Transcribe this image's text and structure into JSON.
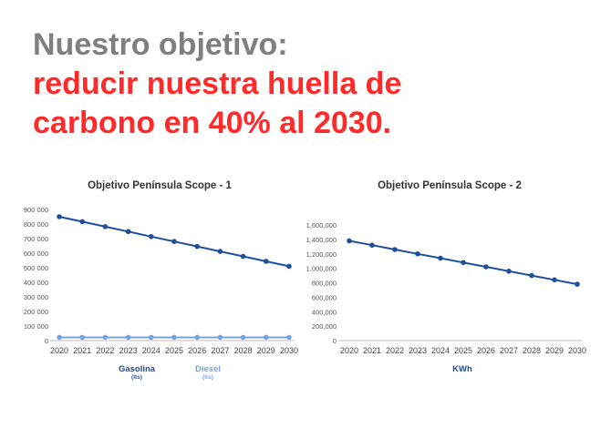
{
  "headline": {
    "line1": "Nuestro objetivo:",
    "line2": "reducir nuestra huella de",
    "line3": "carbono en 40% al 2030."
  },
  "colors": {
    "gray": "#7f7f7f",
    "red": "#ff2a2a",
    "dark_blue": "#1f4e9a",
    "light_blue": "#7aa3dc"
  },
  "chart_data": [
    {
      "type": "line",
      "title": "Objetivo Península Scope - 1",
      "x": [
        2020,
        2021,
        2022,
        2023,
        2024,
        2025,
        2026,
        2027,
        2028,
        2029,
        2030
      ],
      "ylim": [
        0,
        900000
      ],
      "yticks": [
        "0",
        "100 000",
        "200 000",
        "300 000",
        "400 000",
        "500 000",
        "600 000",
        "700 000",
        "800 000",
        "900 000"
      ],
      "grid": false,
      "legend_position": "bottom",
      "series": [
        {
          "name": "Gasolina",
          "unit": "(lts)",
          "color": "#1f4e9a",
          "values": [
            850000,
            816000,
            782000,
            748000,
            714000,
            680000,
            646000,
            612000,
            578000,
            544000,
            510000
          ]
        },
        {
          "name": "Diesel",
          "unit": "(lts)",
          "color": "#7aa3dc",
          "values": [
            22000,
            22000,
            22000,
            22000,
            22000,
            22000,
            22000,
            22000,
            22000,
            22000,
            22000
          ]
        }
      ]
    },
    {
      "type": "line",
      "title": "Objetivo Península Scope - 2",
      "x": [
        2020,
        2021,
        2022,
        2023,
        2024,
        2025,
        2026,
        2027,
        2028,
        2029,
        2030
      ],
      "ylim": [
        0,
        1600000
      ],
      "yticks": [
        "0",
        "200,000",
        "400,000",
        "600,000",
        "800,000",
        "1,000,000",
        "1,200,000",
        "1,400,000",
        "1,600,000"
      ],
      "grid": false,
      "legend_position": "bottom",
      "series": [
        {
          "name": "KWh",
          "color": "#1f4e9a",
          "values": [
            1380000,
            1320000,
            1260000,
            1200000,
            1140000,
            1080000,
            1020000,
            960000,
            900000,
            840000,
            780000
          ]
        }
      ]
    }
  ]
}
